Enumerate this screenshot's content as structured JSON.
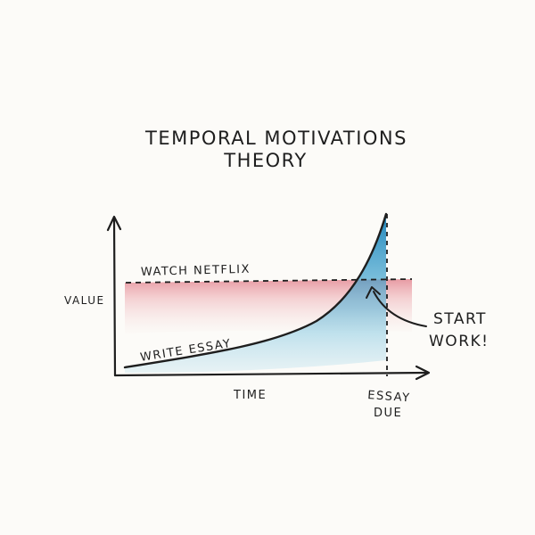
{
  "title": {
    "line1": "TEMPORAL MOTIVATIONS",
    "line2": "THEORY"
  },
  "axes": {
    "y_label": "VALUE",
    "x_label": "TIME"
  },
  "curves": {
    "netflix_label": "WATCH NETFLIX",
    "essay_label": "WRITE ESSAY"
  },
  "annotations": {
    "start_line1": "START",
    "start_line2": "WORK!",
    "due_line1": "ESSAY",
    "due_line2": "DUE"
  },
  "colors": {
    "ink": "#1e1e1e",
    "netflix_shade": "#e07a86",
    "essay_shade": "#1c8fc4"
  }
}
